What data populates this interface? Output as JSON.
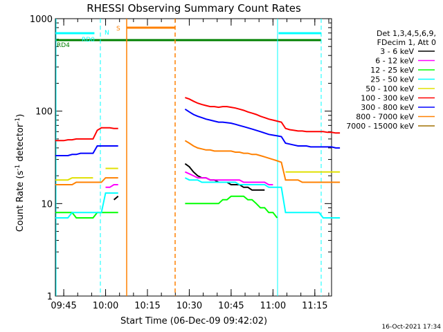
{
  "chart_data": {
    "type": "line",
    "title": "RHESSI Observing Summary Count Rates",
    "xlabel": "Start Time (06-Dec-09 09:42:02)",
    "ylabel": "Count Rate (s⁻¹ detector⁻¹)",
    "ylabel_base": "Count Rate (s",
    "ylabel_sup1": "-1",
    "ylabel_mid": " detector",
    "ylabel_sup2": "-1",
    "ylabel_end": ")",
    "y_scale": "log",
    "ylim": [
      1,
      1000
    ],
    "xlim": [
      "09:42",
      "11:21"
    ],
    "x_ticks": [
      "09:45",
      "10:00",
      "10:15",
      "10:30",
      "10:45",
      "11:00",
      "11:15"
    ],
    "y_ticks": [
      "1",
      "10",
      "100",
      "1000"
    ],
    "grid": false,
    "legend_placement": "right",
    "legend_header": [
      "Det 1,3,4,5,6,9,",
      "FDecim 1, Att 0"
    ],
    "footer_date": "16-Oct-2021 17:34",
    "annotations": [
      {
        "text": "RD0",
        "x": "09:55",
        "color": "#00ffff"
      },
      {
        "text": "RD4",
        "x": "09:43",
        "color": "#008000"
      },
      {
        "text": "N",
        "x": "09:59",
        "color": "#00ffff"
      },
      {
        "text": "S",
        "x": "10:05",
        "color": "#ff8000"
      }
    ],
    "series": [
      {
        "name": "3 - 6 keV",
        "color": "#000000",
        "values": [
          null,
          null,
          null,
          null,
          null,
          null,
          null,
          null,
          null,
          null,
          null,
          null,
          null,
          null,
          11,
          12,
          null,
          null,
          null,
          null,
          null,
          null,
          null,
          null,
          null,
          null,
          null,
          null,
          null,
          null,
          null,
          27,
          25,
          22,
          20,
          19,
          19,
          18,
          18,
          17,
          17,
          17,
          16,
          16,
          16,
          15,
          15,
          14,
          14,
          14,
          14,
          null,
          null,
          null,
          null,
          null,
          null,
          null,
          null,
          null,
          null,
          null,
          null,
          null,
          null,
          null,
          null,
          null,
          null
        ]
      },
      {
        "name": "6 - 12 keV",
        "color": "#ff00ff",
        "values": [
          null,
          null,
          null,
          null,
          null,
          null,
          null,
          null,
          null,
          null,
          null,
          null,
          15,
          15,
          16,
          16,
          null,
          null,
          null,
          null,
          null,
          null,
          null,
          null,
          null,
          null,
          null,
          null,
          null,
          null,
          null,
          22,
          21,
          20,
          19,
          19,
          19,
          18,
          18,
          18,
          18,
          18,
          18,
          18,
          18,
          17,
          17,
          17,
          17,
          17,
          17,
          16,
          16,
          null,
          null,
          null,
          null,
          null,
          null,
          null,
          null,
          null,
          null,
          null,
          null,
          null,
          null,
          null,
          null
        ]
      },
      {
        "name": "12 - 25 keV",
        "color": "#00ff00",
        "values": [
          8,
          8,
          8,
          8,
          8,
          7,
          7,
          7,
          7,
          7,
          8,
          8,
          8,
          8,
          8,
          8,
          null,
          null,
          null,
          null,
          null,
          null,
          null,
          null,
          null,
          null,
          null,
          null,
          null,
          null,
          null,
          10,
          10,
          10,
          10,
          10,
          10,
          10,
          10,
          10,
          11,
          11,
          12,
          12,
          12,
          12,
          11,
          11,
          10,
          9,
          9,
          8,
          8,
          7,
          null,
          null,
          null,
          null,
          null,
          null,
          null,
          null,
          null,
          null,
          null,
          null,
          null,
          null,
          null
        ]
      },
      {
        "name": "25 - 50 keV",
        "color": "#00ffff",
        "values": [
          7,
          7,
          7,
          7,
          8,
          8,
          8,
          8,
          8,
          8,
          8,
          8,
          13,
          13,
          13,
          13,
          null,
          null,
          null,
          null,
          null,
          null,
          null,
          null,
          null,
          null,
          null,
          null,
          null,
          null,
          null,
          19,
          18,
          18,
          18,
          17,
          17,
          17,
          17,
          17,
          17,
          17,
          17,
          17,
          16,
          16,
          16,
          16,
          16,
          16,
          16,
          15,
          15,
          15,
          15,
          8,
          8,
          8,
          8,
          8,
          8,
          8,
          8,
          8,
          7,
          7,
          7,
          7,
          7
        ]
      },
      {
        "name": "50 - 100 keV",
        "color": "#e0e000",
        "values": [
          18,
          18,
          18,
          18,
          19,
          19,
          19,
          19,
          19,
          19,
          null,
          null,
          24,
          24,
          24,
          24,
          null,
          null,
          null,
          null,
          null,
          null,
          null,
          null,
          null,
          null,
          null,
          null,
          null,
          null,
          null,
          null,
          null,
          null,
          null,
          null,
          null,
          null,
          null,
          null,
          null,
          null,
          null,
          null,
          null,
          null,
          null,
          null,
          null,
          null,
          null,
          null,
          null,
          null,
          null,
          22,
          22,
          22,
          22,
          22,
          22,
          22,
          22,
          22,
          22,
          22,
          22,
          22,
          22
        ]
      },
      {
        "name": "100 - 300 keV",
        "color": "#ff0000",
        "values": [
          48,
          48,
          48,
          49,
          49,
          50,
          50,
          50,
          50,
          50,
          62,
          66,
          66,
          66,
          65,
          65,
          null,
          null,
          null,
          null,
          null,
          null,
          null,
          null,
          null,
          null,
          null,
          null,
          null,
          null,
          null,
          140,
          135,
          128,
          122,
          118,
          115,
          112,
          112,
          110,
          112,
          112,
          110,
          108,
          105,
          102,
          98,
          95,
          92,
          88,
          85,
          82,
          80,
          78,
          76,
          65,
          63,
          62,
          61,
          61,
          60,
          60,
          60,
          60,
          60,
          59,
          59,
          58,
          58
        ]
      },
      {
        "name": "300 - 800 keV",
        "color": "#0000ff",
        "values": [
          33,
          33,
          33,
          33,
          34,
          34,
          35,
          35,
          35,
          35,
          42,
          42,
          42,
          42,
          42,
          42,
          null,
          null,
          null,
          null,
          null,
          null,
          null,
          null,
          null,
          null,
          null,
          null,
          null,
          null,
          null,
          105,
          98,
          92,
          88,
          85,
          82,
          80,
          78,
          76,
          76,
          75,
          74,
          72,
          70,
          68,
          66,
          64,
          62,
          60,
          58,
          56,
          55,
          54,
          53,
          45,
          44,
          43,
          42,
          42,
          42,
          41,
          41,
          41,
          41,
          41,
          41,
          40,
          40
        ]
      },
      {
        "name": "800 - 7000 keV",
        "color": "#ff8000",
        "values": [
          16,
          16,
          16,
          16,
          16,
          17,
          17,
          17,
          17,
          17,
          17,
          17,
          19,
          19,
          19,
          19,
          null,
          null,
          null,
          null,
          null,
          null,
          null,
          null,
          null,
          null,
          null,
          null,
          null,
          null,
          null,
          48,
          45,
          42,
          40,
          39,
          38,
          38,
          37,
          37,
          37,
          37,
          37,
          36,
          36,
          35,
          35,
          34,
          34,
          33,
          32,
          31,
          30,
          29,
          28,
          18,
          18,
          18,
          18,
          17,
          17,
          17,
          17,
          17,
          17,
          17,
          17,
          17,
          17
        ]
      },
      {
        "name": "7000 - 15000 keV",
        "color": "#a07000",
        "values": []
      }
    ],
    "x_start_minutes": 0,
    "x_step_minutes": 1.5
  }
}
